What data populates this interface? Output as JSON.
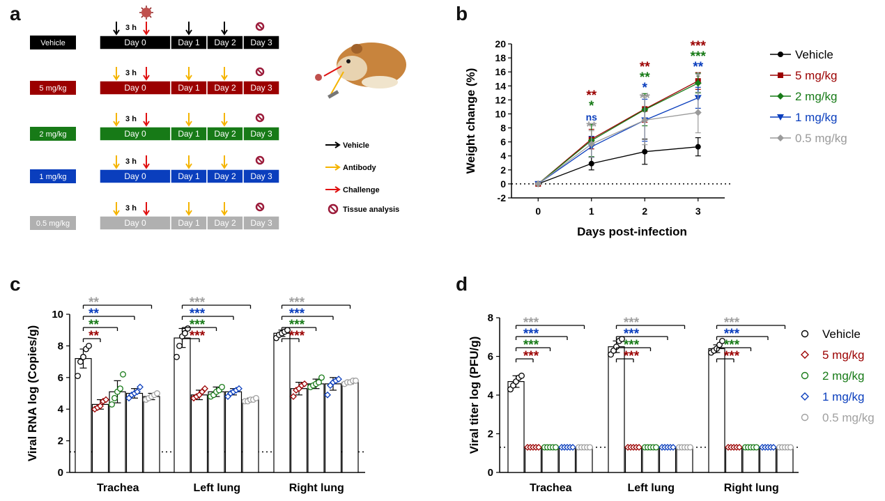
{
  "panels": {
    "a": "a",
    "b": "b",
    "c": "c",
    "d": "d"
  },
  "panel_a": {
    "groups": [
      "Vehicle",
      "5 mg/kg",
      "2 mg/kg",
      "1 mg/kg",
      "0.5 mg/kg"
    ],
    "group_colors": [
      "#000000",
      "#9b0000",
      "#177a17",
      "#0a3ebd",
      "#b0b0b0"
    ],
    "days": [
      "Day 0",
      "Day 1",
      "Day 2",
      "Day 3"
    ],
    "interval": "3 h",
    "legend": [
      {
        "label": "Vehicle",
        "icon": "black-arrow-icon",
        "color": "#000000"
      },
      {
        "label": "Antibody",
        "icon": "yellow-arrow-icon",
        "color": "#f5b400"
      },
      {
        "label": "Challenge",
        "icon": "red-arrow-icon",
        "color": "#e01010"
      },
      {
        "label": "Tissue analysis",
        "icon": "tissue-analysis-icon",
        "color": "#9b1b3a"
      }
    ],
    "illustration": "hamster-virus-illustration"
  },
  "chart_data": [
    {
      "panel": "b",
      "type": "line",
      "xlabel": "Days post-infection",
      "ylabel": "Weight change (%)",
      "x": [
        0,
        1,
        2,
        3
      ],
      "xlim": [
        -0.5,
        3.5
      ],
      "ylim": [
        -2,
        20
      ],
      "yticks": [
        -2,
        0,
        2,
        4,
        6,
        8,
        10,
        12,
        14,
        16,
        18,
        20
      ],
      "reference_line": 0,
      "legend_position": "right",
      "series": [
        {
          "name": "Vehicle",
          "color": "#000000",
          "marker": "circle",
          "values": [
            0,
            2.9,
            4.6,
            5.3
          ],
          "errors": [
            0,
            0.9,
            1.8,
            1.3
          ]
        },
        {
          "name": "5 mg/kg",
          "color": "#9b0000",
          "marker": "square",
          "values": [
            0,
            6.4,
            10.7,
            14.7
          ],
          "errors": [
            0,
            1.4,
            1.9,
            1.2
          ]
        },
        {
          "name": "2 mg/kg",
          "color": "#177a17",
          "marker": "diamond",
          "values": [
            0,
            6.2,
            10.6,
            14.4
          ],
          "errors": [
            0,
            2.3,
            2.3,
            1.4
          ]
        },
        {
          "name": "1 mg/kg",
          "color": "#0a3ebd",
          "marker": "triangle-down",
          "values": [
            0,
            5.3,
            9.1,
            12.3
          ],
          "errors": [
            0,
            1.5,
            3.0,
            1.5
          ]
        },
        {
          "name": "0.5 mg/kg",
          "color": "#9a9a9a",
          "marker": "diamond",
          "values": [
            0,
            5.7,
            9.1,
            10.2
          ],
          "errors": [
            0,
            1.9,
            3.5,
            2.9
          ]
        }
      ],
      "significance": [
        {
          "x": 1,
          "labels": [
            {
              "text": "**",
              "color": "#9b0000"
            },
            {
              "text": "*",
              "color": "#177a17"
            },
            {
              "text": "ns",
              "color": "#0a3ebd"
            },
            {
              "text": "**",
              "color": "#9a9a9a"
            }
          ]
        },
        {
          "x": 2,
          "labels": [
            {
              "text": "**",
              "color": "#9b0000"
            },
            {
              "text": "**",
              "color": "#177a17"
            },
            {
              "text": "*",
              "color": "#0a3ebd"
            },
            {
              "text": "**",
              "color": "#9a9a9a"
            }
          ]
        },
        {
          "x": 3,
          "labels": [
            {
              "text": "***",
              "color": "#9b0000"
            },
            {
              "text": "***",
              "color": "#177a17"
            },
            {
              "text": "**",
              "color": "#0a3ebd"
            },
            {
              "text": "*",
              "color": "#9a9a9a"
            }
          ]
        }
      ]
    },
    {
      "panel": "c",
      "type": "bar",
      "ylabel": "Viral RNA log (Copies/g)",
      "categories": [
        "Trachea",
        "Left lung",
        "Right lung"
      ],
      "ylim": [
        0,
        10
      ],
      "yticks": [
        0,
        2,
        4,
        6,
        8,
        10
      ],
      "detection_limit": 1.3,
      "series": [
        {
          "name": "Vehicle",
          "color": "#000000",
          "values": [
            7.2,
            8.5,
            8.8
          ],
          "errors": [
            0.6,
            0.6,
            0.2
          ],
          "points": [
            [
              6.1,
              7.0,
              7.3,
              7.8,
              8.0
            ],
            [
              7.3,
              8.0,
              8.6,
              8.8,
              9.1
            ],
            [
              8.5,
              8.7,
              8.8,
              8.9,
              9.0
            ]
          ]
        },
        {
          "name": "5 mg/kg",
          "color": "#9b0000",
          "values": [
            4.3,
            4.9,
            5.3
          ],
          "errors": [
            0.3,
            0.3,
            0.4
          ],
          "points": [
            [
              4.0,
              4.1,
              4.2,
              4.5,
              4.6
            ],
            [
              4.7,
              4.8,
              4.9,
              5.1,
              5.3
            ],
            [
              4.8,
              5.2,
              5.3,
              5.5,
              5.6
            ]
          ]
        },
        {
          "name": "2 mg/kg",
          "color": "#177a17",
          "values": [
            5.1,
            5.1,
            5.6
          ],
          "errors": [
            0.7,
            0.3,
            0.3
          ],
          "points": [
            [
              4.3,
              4.7,
              5.1,
              5.3,
              6.2
            ],
            [
              4.8,
              4.9,
              5.1,
              5.2,
              5.4
            ],
            [
              5.4,
              5.5,
              5.6,
              5.7,
              6.0
            ]
          ]
        },
        {
          "name": "1 mg/kg",
          "color": "#0a3ebd",
          "values": [
            5.0,
            5.1,
            5.6
          ],
          "errors": [
            0.3,
            0.2,
            0.4
          ],
          "points": [
            [
              4.7,
              4.9,
              5.0,
              5.1,
              5.4
            ],
            [
              4.8,
              5.0,
              5.1,
              5.2,
              5.3
            ],
            [
              4.9,
              5.5,
              5.7,
              5.8,
              5.9
            ]
          ]
        },
        {
          "name": "0.5 mg/kg",
          "color": "#a0a0a0",
          "values": [
            4.8,
            4.6,
            5.7
          ],
          "errors": [
            0.2,
            0.1,
            0.1
          ],
          "points": [
            [
              4.6,
              4.7,
              4.8,
              4.9,
              5.0
            ],
            [
              4.5,
              4.5,
              4.6,
              4.6,
              4.7
            ],
            [
              5.6,
              5.7,
              5.7,
              5.8,
              5.8
            ]
          ]
        }
      ],
      "significance": [
        {
          "category": "Trachea",
          "labels": [
            {
              "text": "**",
              "color": "#9b0000"
            },
            {
              "text": "**",
              "color": "#177a17"
            },
            {
              "text": "**",
              "color": "#0a3ebd"
            },
            {
              "text": "**",
              "color": "#a0a0a0"
            }
          ]
        },
        {
          "category": "Left lung",
          "labels": [
            {
              "text": "***",
              "color": "#9b0000"
            },
            {
              "text": "***",
              "color": "#177a17"
            },
            {
              "text": "***",
              "color": "#0a3ebd"
            },
            {
              "text": "***",
              "color": "#a0a0a0"
            }
          ]
        },
        {
          "category": "Right lung",
          "labels": [
            {
              "text": "***",
              "color": "#9b0000"
            },
            {
              "text": "***",
              "color": "#177a17"
            },
            {
              "text": "***",
              "color": "#0a3ebd"
            },
            {
              "text": "***",
              "color": "#a0a0a0"
            }
          ]
        }
      ]
    },
    {
      "panel": "d",
      "type": "bar",
      "ylabel": "Viral titer log (PFU/g)",
      "categories": [
        "Trachea",
        "Left lung",
        "Right lung"
      ],
      "ylim": [
        0,
        8
      ],
      "yticks": [
        0,
        2,
        4,
        6,
        8
      ],
      "detection_limit": 1.3,
      "legend_position": "right",
      "series": [
        {
          "name": "Vehicle",
          "color": "#000000",
          "values": [
            4.7,
            6.5,
            6.4
          ],
          "errors": [
            0.3,
            0.3,
            0.2
          ],
          "points": [
            [
              4.3,
              4.5,
              4.7,
              4.9,
              5.0
            ],
            [
              6.1,
              6.3,
              6.5,
              6.8,
              6.9
            ],
            [
              6.2,
              6.3,
              6.4,
              6.6,
              6.8
            ]
          ]
        },
        {
          "name": "5 mg/kg",
          "color": "#9b0000",
          "values": [
            1.3,
            1.3,
            1.3
          ],
          "errors": [
            0,
            0,
            0
          ],
          "points": [
            [
              1.3,
              1.3,
              1.3,
              1.3,
              1.3
            ],
            [
              1.3,
              1.3,
              1.3,
              1.3,
              1.3
            ],
            [
              1.3,
              1.3,
              1.3,
              1.3,
              1.3
            ]
          ]
        },
        {
          "name": "2 mg/kg",
          "color": "#177a17",
          "values": [
            1.3,
            1.3,
            1.3
          ],
          "errors": [
            0,
            0,
            0
          ],
          "points": [
            [
              1.3,
              1.3,
              1.3,
              1.3,
              1.3
            ],
            [
              1.3,
              1.3,
              1.3,
              1.3,
              1.3
            ],
            [
              1.3,
              1.3,
              1.3,
              1.3,
              1.3
            ]
          ]
        },
        {
          "name": "1 mg/kg",
          "color": "#0a3ebd",
          "values": [
            1.3,
            1.3,
            1.3
          ],
          "errors": [
            0,
            0,
            0
          ],
          "points": [
            [
              1.3,
              1.3,
              1.3,
              1.3,
              1.3
            ],
            [
              1.3,
              1.3,
              1.3,
              1.3,
              1.3
            ],
            [
              1.3,
              1.3,
              1.3,
              1.3,
              1.3
            ]
          ]
        },
        {
          "name": "0.5 mg/kg",
          "color": "#a0a0a0",
          "values": [
            1.3,
            1.3,
            1.3
          ],
          "errors": [
            0,
            0,
            0
          ],
          "points": [
            [
              1.3,
              1.3,
              1.3,
              1.3,
              1.3
            ],
            [
              1.3,
              1.3,
              1.3,
              1.3,
              1.3
            ],
            [
              1.3,
              1.3,
              1.3,
              1.3,
              1.3
            ]
          ]
        }
      ],
      "significance": [
        {
          "category": "Trachea",
          "labels": [
            {
              "text": "***",
              "color": "#9b0000"
            },
            {
              "text": "***",
              "color": "#177a17"
            },
            {
              "text": "***",
              "color": "#0a3ebd"
            },
            {
              "text": "***",
              "color": "#a0a0a0"
            }
          ]
        },
        {
          "category": "Left lung",
          "labels": [
            {
              "text": "***",
              "color": "#9b0000"
            },
            {
              "text": "***",
              "color": "#177a17"
            },
            {
              "text": "***",
              "color": "#0a3ebd"
            },
            {
              "text": "***",
              "color": "#a0a0a0"
            }
          ]
        },
        {
          "category": "Right lung",
          "labels": [
            {
              "text": "***",
              "color": "#9b0000"
            },
            {
              "text": "***",
              "color": "#177a17"
            },
            {
              "text": "***",
              "color": "#0a3ebd"
            },
            {
              "text": "***",
              "color": "#a0a0a0"
            }
          ]
        }
      ]
    }
  ]
}
